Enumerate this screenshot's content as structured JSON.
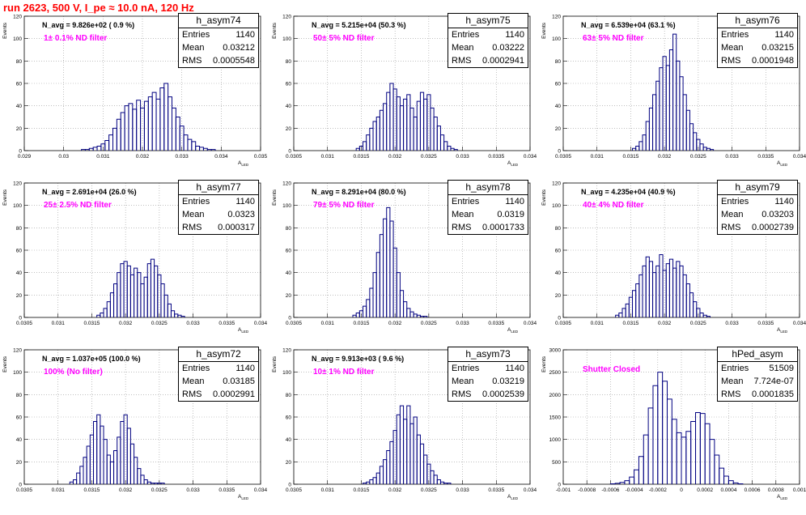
{
  "title": "run 2623,   500 V, I_pe ≈ 10.0 nA, 120 Hz",
  "chart_data": [
    {
      "type": "bar",
      "hist": "h_asym74",
      "entries": "1140",
      "mean": "0.03212",
      "rms": "0.0005548",
      "navg": "N_avg = 9.826e+02 ( 0.9 %)",
      "filter": "1± 0.1% ND filter",
      "xlabel": "A_LED",
      "ylabel": "Events",
      "xlim": [
        0.029,
        0.035
      ],
      "ylim": [
        0,
        120
      ],
      "xticks": [
        "0.029",
        "0.03",
        "0.031",
        "0.032",
        "0.033",
        "0.034",
        "0.035"
      ],
      "yticks": [
        "0",
        "20",
        "40",
        "60",
        "80",
        "100",
        "120"
      ],
      "x": [
        0.0305,
        0.0306,
        0.0307,
        0.0308,
        0.0309,
        0.031,
        0.0311,
        0.0312,
        0.0313,
        0.0314,
        0.0315,
        0.0316,
        0.0317,
        0.0318,
        0.0319,
        0.032,
        0.0321,
        0.0322,
        0.0323,
        0.0324,
        0.0325,
        0.0326,
        0.0327,
        0.0328,
        0.0329,
        0.033,
        0.0331,
        0.0332,
        0.0333,
        0.0334,
        0.0335,
        0.0336,
        0.0337,
        0.0338
      ],
      "values": [
        1,
        1,
        2,
        3,
        4,
        6,
        9,
        14,
        20,
        28,
        34,
        40,
        42,
        37,
        45,
        38,
        44,
        48,
        52,
        46,
        56,
        60,
        48,
        38,
        30,
        22,
        14,
        10,
        8,
        4,
        3,
        2,
        1,
        1
      ]
    },
    {
      "type": "bar",
      "hist": "h_asym75",
      "entries": "1140",
      "mean": "0.03222",
      "rms": "0.0002941",
      "navg": "N_avg = 5.215e+04 (50.3 %)",
      "filter": "50± 5% ND filter",
      "xlabel": "A_LED",
      "ylabel": "Events",
      "xlim": [
        0.0305,
        0.034
      ],
      "ylim": [
        0,
        120
      ],
      "xticks": [
        "0.0305",
        "0.031",
        "0.0315",
        "0.032",
        "0.0325",
        "0.033",
        "0.0335",
        "0.034"
      ],
      "yticks": [
        "0",
        "20",
        "40",
        "60",
        "80",
        "100",
        "120"
      ],
      "x": [
        0.03145,
        0.0315,
        0.03155,
        0.0316,
        0.03165,
        0.0317,
        0.03175,
        0.0318,
        0.03185,
        0.0319,
        0.03195,
        0.032,
        0.03205,
        0.0321,
        0.03215,
        0.0322,
        0.03225,
        0.0323,
        0.03235,
        0.0324,
        0.03245,
        0.0325,
        0.03255,
        0.0326,
        0.03265,
        0.0327,
        0.03275,
        0.0328,
        0.03285,
        0.0329
      ],
      "values": [
        2,
        4,
        8,
        14,
        20,
        26,
        30,
        36,
        42,
        52,
        60,
        55,
        48,
        40,
        46,
        50,
        38,
        30,
        44,
        52,
        46,
        50,
        38,
        30,
        22,
        14,
        8,
        4,
        2,
        1
      ]
    },
    {
      "type": "bar",
      "hist": "h_asym76",
      "entries": "1140",
      "mean": "0.03215",
      "rms": "0.0001948",
      "navg": "N_avg = 6.539e+04 (63.1 %)",
      "filter": "63± 5% ND filter",
      "xlabel": "A_LED",
      "ylabel": "Events",
      "xlim": [
        0.0305,
        0.034
      ],
      "ylim": [
        0,
        120
      ],
      "xticks": [
        "0.0305",
        "0.031",
        "0.0315",
        "0.032",
        "0.0325",
        "0.033",
        "0.0335",
        "0.034"
      ],
      "yticks": [
        "0",
        "20",
        "40",
        "60",
        "80",
        "100",
        "120"
      ],
      "x": [
        0.03155,
        0.0316,
        0.03165,
        0.0317,
        0.03175,
        0.0318,
        0.03185,
        0.0319,
        0.03195,
        0.032,
        0.03205,
        0.0321,
        0.03215,
        0.0322,
        0.03225,
        0.0323,
        0.03235,
        0.0324,
        0.03245,
        0.0325,
        0.03255,
        0.0326,
        0.03265,
        0.0327
      ],
      "values": [
        2,
        4,
        8,
        14,
        26,
        38,
        50,
        62,
        74,
        84,
        76,
        90,
        104,
        80,
        66,
        50,
        36,
        24,
        16,
        10,
        6,
        3,
        2,
        1
      ]
    },
    {
      "type": "bar",
      "hist": "h_asym77",
      "entries": "1140",
      "mean": "0.0323",
      "rms": "0.000317",
      "navg": "N_avg = 2.691e+04 (26.0 %)",
      "filter": "25± 2.5% ND filter",
      "xlabel": "A_LED",
      "ylabel": "Events",
      "xlim": [
        0.0305,
        0.034
      ],
      "ylim": [
        0,
        120
      ],
      "xticks": [
        "0.0305",
        "0.031",
        "0.0315",
        "0.032",
        "0.0325",
        "0.033",
        "0.0335",
        "0.034"
      ],
      "yticks": [
        "0",
        "20",
        "40",
        "60",
        "80",
        "100",
        "120"
      ],
      "x": [
        0.0316,
        0.03165,
        0.0317,
        0.03175,
        0.0318,
        0.03185,
        0.0319,
        0.03195,
        0.032,
        0.03205,
        0.0321,
        0.03215,
        0.0322,
        0.03225,
        0.0323,
        0.03235,
        0.0324,
        0.03245,
        0.0325,
        0.03255,
        0.0326,
        0.03265,
        0.0327,
        0.03275,
        0.0328,
        0.03285
      ],
      "values": [
        2,
        4,
        8,
        14,
        22,
        30,
        40,
        48,
        50,
        46,
        38,
        44,
        40,
        30,
        36,
        48,
        52,
        46,
        38,
        30,
        20,
        12,
        6,
        3,
        2,
        1
      ]
    },
    {
      "type": "bar",
      "hist": "h_asym78",
      "entries": "1140",
      "mean": "0.0319",
      "rms": "0.0001733",
      "navg": "N_avg = 8.291e+04 (80.0 %)",
      "filter": "79± 5% ND filter",
      "xlabel": "A_LED",
      "ylabel": "Events",
      "xlim": [
        0.0305,
        0.034
      ],
      "ylim": [
        0,
        120
      ],
      "xticks": [
        "0.0305",
        "0.031",
        "0.0315",
        "0.032",
        "0.0325",
        "0.033",
        "0.0335",
        "0.034"
      ],
      "yticks": [
        "0",
        "20",
        "40",
        "60",
        "80",
        "100",
        "120"
      ],
      "x": [
        0.0314,
        0.03145,
        0.0315,
        0.03155,
        0.0316,
        0.03165,
        0.0317,
        0.03175,
        0.0318,
        0.03185,
        0.0319,
        0.03195,
        0.032,
        0.03205,
        0.0321,
        0.03215,
        0.0322,
        0.03225,
        0.0323,
        0.03235,
        0.0324,
        0.03245
      ],
      "values": [
        2,
        4,
        6,
        10,
        16,
        26,
        40,
        58,
        74,
        88,
        98,
        86,
        62,
        40,
        24,
        14,
        8,
        5,
        3,
        2,
        1,
        1
      ]
    },
    {
      "type": "bar",
      "hist": "h_asym79",
      "entries": "1140",
      "mean": "0.03203",
      "rms": "0.0002739",
      "navg": "N_avg = 4.235e+04 (40.9 %)",
      "filter": "40± 4% ND filter",
      "xlabel": "A_LED",
      "ylabel": "Events",
      "xlim": [
        0.0305,
        0.034
      ],
      "ylim": [
        0,
        120
      ],
      "xticks": [
        "0.0305",
        "0.031",
        "0.0315",
        "0.032",
        "0.0325",
        "0.033",
        "0.0335",
        "0.034"
      ],
      "yticks": [
        "0",
        "20",
        "40",
        "60",
        "80",
        "100",
        "120"
      ],
      "x": [
        0.0313,
        0.03135,
        0.0314,
        0.03145,
        0.0315,
        0.03155,
        0.0316,
        0.03165,
        0.0317,
        0.03175,
        0.0318,
        0.03185,
        0.0319,
        0.03195,
        0.032,
        0.03205,
        0.0321,
        0.03215,
        0.0322,
        0.03225,
        0.0323,
        0.03235,
        0.0324,
        0.03245,
        0.0325,
        0.03255,
        0.0326,
        0.03265
      ],
      "values": [
        2,
        4,
        8,
        12,
        18,
        24,
        30,
        38,
        46,
        54,
        50,
        40,
        46,
        56,
        42,
        48,
        52,
        44,
        50,
        46,
        38,
        30,
        22,
        14,
        8,
        4,
        2,
        1
      ]
    },
    {
      "type": "bar",
      "hist": "h_asym72",
      "entries": "1140",
      "mean": "0.03185",
      "rms": "0.0002991",
      "navg": "N_avg = 1.037e+05 (100.0 %)",
      "filter": "100% (No filter)",
      "xlabel": "A_LED",
      "ylabel": "Events",
      "xlim": [
        0.0305,
        0.034
      ],
      "ylim": [
        0,
        120
      ],
      "xticks": [
        "0.0305",
        "0.031",
        "0.0315",
        "0.032",
        "0.0325",
        "0.033",
        "0.0335",
        "0.034"
      ],
      "yticks": [
        "0",
        "20",
        "40",
        "60",
        "80",
        "100",
        "120"
      ],
      "x": [
        0.0312,
        0.03125,
        0.0313,
        0.03135,
        0.0314,
        0.03145,
        0.0315,
        0.03155,
        0.0316,
        0.03165,
        0.0317,
        0.03175,
        0.0318,
        0.03185,
        0.0319,
        0.03195,
        0.032,
        0.03205,
        0.0321,
        0.03215,
        0.0322,
        0.03225,
        0.0323,
        0.03235,
        0.0324,
        0.03245,
        0.0325,
        0.03255
      ],
      "values": [
        2,
        4,
        10,
        16,
        24,
        34,
        44,
        56,
        62,
        52,
        40,
        26,
        20,
        30,
        42,
        56,
        62,
        50,
        36,
        24,
        14,
        8,
        4,
        2,
        1,
        1,
        1,
        1
      ]
    },
    {
      "type": "bar",
      "hist": "h_asym73",
      "entries": "1140",
      "mean": "0.03219",
      "rms": "0.0002539",
      "navg": "N_avg = 9.913e+03 ( 9.6 %)",
      "filter": "10± 1% ND filter",
      "xlabel": "A_LED",
      "ylabel": "Events",
      "xlim": [
        0.0305,
        0.034
      ],
      "ylim": [
        0,
        120
      ],
      "xticks": [
        "0.0305",
        "0.031",
        "0.0315",
        "0.032",
        "0.0325",
        "0.033",
        "0.0335",
        "0.034"
      ],
      "yticks": [
        "0",
        "20",
        "40",
        "60",
        "80",
        "100",
        "120"
      ],
      "x": [
        0.03155,
        0.0316,
        0.03165,
        0.0317,
        0.03175,
        0.0318,
        0.03185,
        0.0319,
        0.03195,
        0.032,
        0.03205,
        0.0321,
        0.03215,
        0.0322,
        0.03225,
        0.0323,
        0.03235,
        0.0324,
        0.03245,
        0.0325,
        0.03255,
        0.0326,
        0.03265,
        0.0327,
        0.03275,
        0.0328
      ],
      "values": [
        1,
        2,
        4,
        6,
        10,
        16,
        22,
        30,
        38,
        48,
        62,
        70,
        58,
        70,
        54,
        60,
        44,
        36,
        26,
        18,
        12,
        8,
        4,
        2,
        1,
        1
      ]
    },
    {
      "type": "bar",
      "hist": "hPed_asym",
      "entries": "51509",
      "mean": "7.724e-07",
      "rms": "0.0001835",
      "navg": "",
      "filter": "Shutter Closed",
      "xlabel": "A_LED",
      "ylabel": "Events",
      "xlim": [
        -0.001,
        0.001
      ],
      "ylim": [
        0,
        3000
      ],
      "xticks": [
        "-0.001",
        "-0.0008",
        "-0.0006",
        "-0.0004",
        "-0.0002",
        "0",
        "0.0002",
        "0.0004",
        "0.0006",
        "0.0008",
        "0.001"
      ],
      "yticks": [
        "0",
        "500",
        "1000",
        "1500",
        "2000",
        "2500",
        "3000"
      ],
      "x": [
        -0.00058,
        -0.00054,
        -0.0005,
        -0.00046,
        -0.00042,
        -0.00038,
        -0.00034,
        -0.0003,
        -0.00026,
        -0.00022,
        -0.00018,
        -0.00014,
        -0.0001,
        -6e-05,
        -2e-05,
        2e-05,
        6e-05,
        0.0001,
        0.00014,
        0.00018,
        0.00022,
        0.00026,
        0.0003,
        0.00034,
        0.00038,
        0.00042,
        0.00046,
        0.0005
      ],
      "values": [
        10,
        20,
        40,
        80,
        160,
        320,
        620,
        1100,
        1700,
        2200,
        2500,
        2300,
        1900,
        1450,
        1150,
        1050,
        1180,
        1400,
        1600,
        1580,
        1350,
        1000,
        650,
        360,
        180,
        80,
        30,
        10
      ]
    }
  ]
}
